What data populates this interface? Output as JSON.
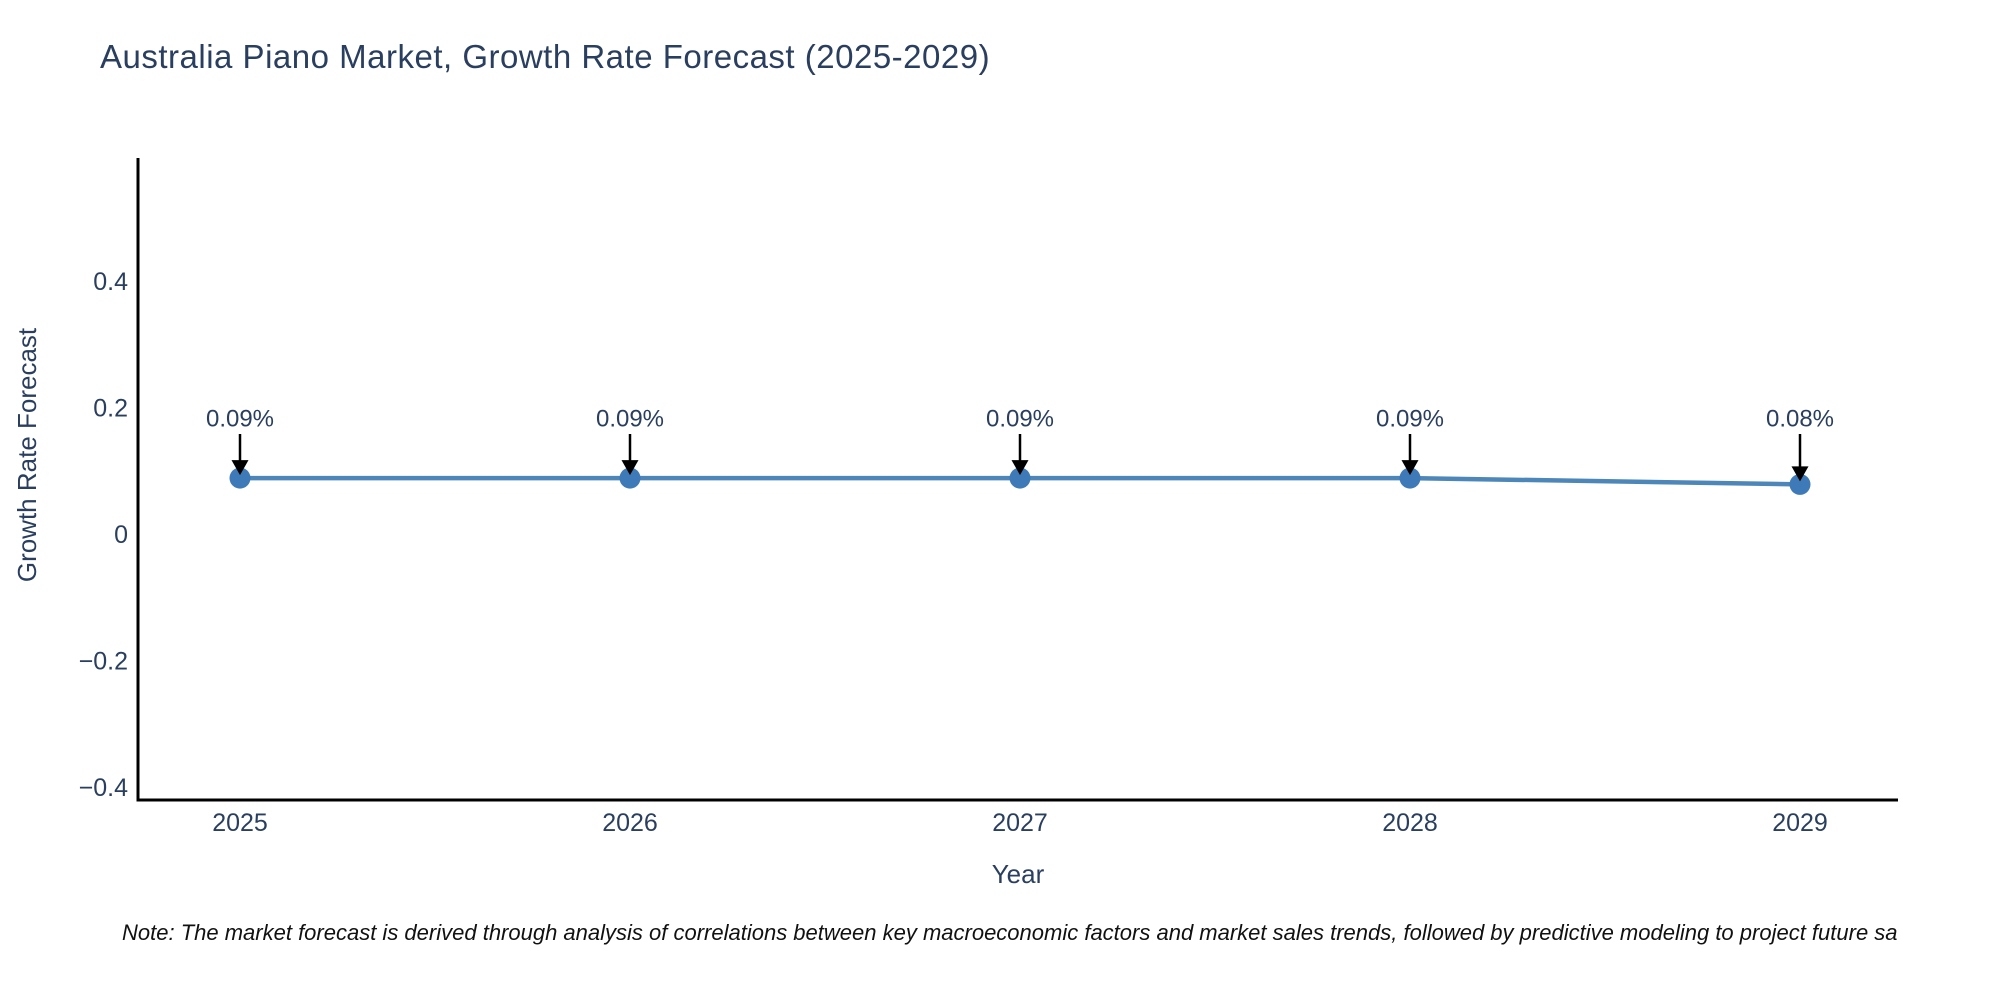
{
  "title": "Australia Piano Market, Growth Rate Forecast (2025-2029)",
  "note": "Note: The market forecast is derived through analysis of correlations between key macroeconomic factors and market sales trends, followed by predictive modeling to project future sa",
  "colors": {
    "line": "#4d86b8",
    "marker": "#3f7ab8",
    "axis": "#000000",
    "text": "#2a3f5f",
    "arrow": "#000000"
  },
  "chart_data": {
    "type": "line",
    "title": "Australia Piano Market, Growth Rate Forecast (2025-2029)",
    "xlabel": "Year",
    "ylabel": "Growth Rate Forecast",
    "categories": [
      "2025",
      "2026",
      "2027",
      "2028",
      "2029"
    ],
    "series": [
      {
        "name": "Growth Rate Forecast",
        "values": [
          0.09,
          0.09,
          0.09,
          0.09,
          0.08
        ],
        "point_labels": [
          "0.09%",
          "0.09%",
          "0.09%",
          "0.09%",
          "0.08%"
        ]
      }
    ],
    "ytick_values": [
      0.4,
      0.2,
      0,
      -0.2,
      -0.4
    ],
    "ytick_labels": [
      "0.4",
      "0.2",
      "0",
      "−0.2",
      "−0.4"
    ],
    "ylim": [
      -0.45,
      0.58
    ],
    "grid": false,
    "legend": false,
    "annotation_style": "value labels with down arrows pointing at markers"
  }
}
